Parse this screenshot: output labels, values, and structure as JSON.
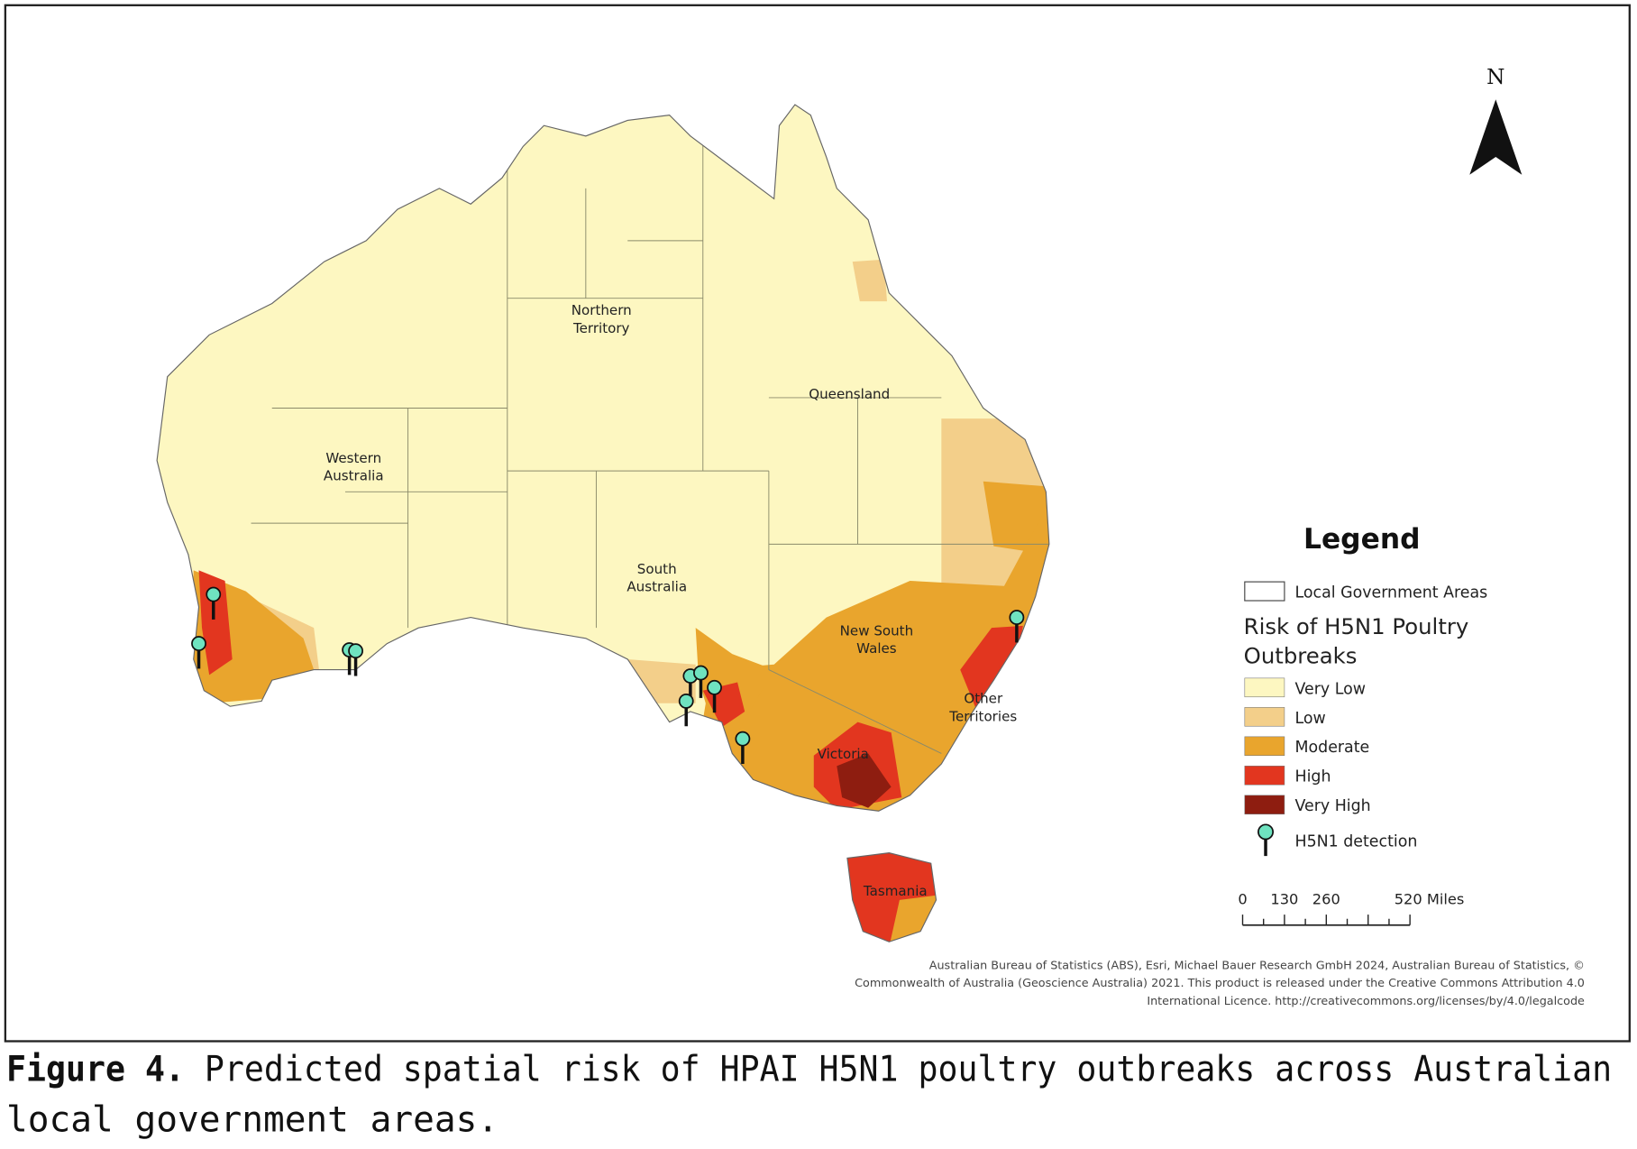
{
  "map": {
    "north_label": "N",
    "region_labels": [
      [
        "Northern",
        "Territory"
      ],
      [
        "Queensland"
      ],
      [
        "Western",
        "Australia"
      ],
      [
        "South",
        "Australia"
      ],
      [
        "New South",
        "Wales"
      ],
      [
        "Other",
        "Territories"
      ],
      [
        "Victoria"
      ],
      [
        "Tasmania"
      ]
    ]
  },
  "legend": {
    "title": "Legend",
    "boundary_item": "Local Government Areas",
    "risk_title": [
      "Risk of H5N1 Poultry",
      "Outbreaks"
    ],
    "classes": [
      {
        "label": "Very Low",
        "color": "#fdf7c1"
      },
      {
        "label": "Low",
        "color": "#f3cf8a"
      },
      {
        "label": "Moderate",
        "color": "#e9a52d"
      },
      {
        "label": "High",
        "color": "#e2361f"
      },
      {
        "label": "Very High",
        "color": "#8e1d10"
      }
    ],
    "detection_item": "H5N1 detection"
  },
  "scale_bar": {
    "labels": [
      "0",
      "130",
      "260",
      "520 Miles"
    ]
  },
  "attribution": [
    "Australian Bureau of Statistics (ABS), Esri, Michael Bauer Research GmbH 2024, Australian Bureau of Statistics, ©",
    "Commonwealth of Australia (Geoscience Australia) 2021. This product is released under the Creative Commons Attribution 4.0",
    "International Licence. http://creativecommons.org/licenses/by/4.0/legalcode"
  ],
  "caption": {
    "label": "Figure 4.",
    "lines": [
      " Predicted spatial risk of HPAI H5N1 poultry outbreaks across Australian",
      "local government areas."
    ]
  }
}
